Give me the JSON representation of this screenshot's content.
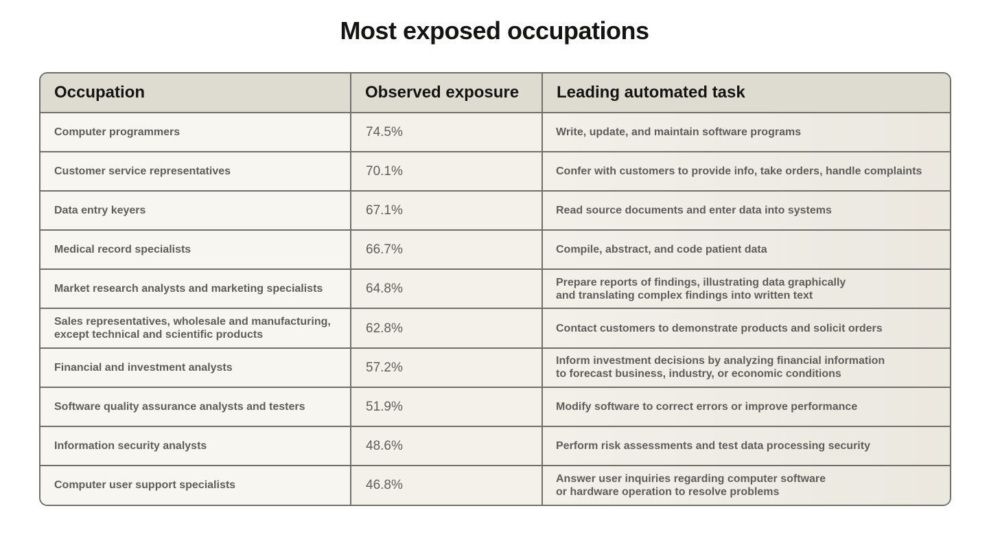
{
  "title": "Most exposed occupations",
  "headers": {
    "occupation": "Occupation",
    "exposure": "Observed exposure",
    "task": "Leading automated task"
  },
  "rows": [
    {
      "occupation": "Computer programmers",
      "exposure": "74.5%",
      "task": "Write, update, and maintain software programs"
    },
    {
      "occupation": "Customer service representatives",
      "exposure": "70.1%",
      "task": "Confer with customers to provide info, take orders, handle complaints"
    },
    {
      "occupation": "Data entry keyers",
      "exposure": "67.1%",
      "task": "Read source documents and enter data into systems"
    },
    {
      "occupation": "Medical record specialists",
      "exposure": "66.7%",
      "task": "Compile, abstract, and code patient data"
    },
    {
      "occupation": "Market research analysts and marketing specialists",
      "exposure": "64.8%",
      "task": "Prepare reports of findings, illustrating data graphically\nand translating complex findings into written text"
    },
    {
      "occupation": "Sales representatives, wholesale and manufacturing,\nexcept technical and scientific products",
      "exposure": "62.8%",
      "task": "Contact customers to demonstrate products and solicit orders"
    },
    {
      "occupation": "Financial and investment analysts",
      "exposure": "57.2%",
      "task": "Inform investment decisions by analyzing financial information\nto forecast business, industry, or economic conditions"
    },
    {
      "occupation": "Software quality assurance analysts and testers",
      "exposure": "51.9%",
      "task": "Modify software to correct errors or improve performance"
    },
    {
      "occupation": "Information security analysts",
      "exposure": "48.6%",
      "task": "Perform risk assessments and test data processing security"
    },
    {
      "occupation": "Computer user support specialists",
      "exposure": "46.8%",
      "task": "Answer user inquiries regarding computer software\nor hardware operation to resolve problems"
    }
  ],
  "chart_data": {
    "type": "table",
    "title": "Most exposed occupations",
    "columns": [
      "Occupation",
      "Observed exposure",
      "Leading automated task"
    ],
    "data": [
      [
        "Computer programmers",
        74.5,
        "Write, update, and maintain software programs"
      ],
      [
        "Customer service representatives",
        70.1,
        "Confer with customers to provide info, take orders, handle complaints"
      ],
      [
        "Data entry keyers",
        67.1,
        "Read source documents and enter data into systems"
      ],
      [
        "Medical record specialists",
        66.7,
        "Compile, abstract, and code patient data"
      ],
      [
        "Market research analysts and marketing specialists",
        64.8,
        "Prepare reports of findings, illustrating data graphically and translating complex findings into written text"
      ],
      [
        "Sales representatives, wholesale and manufacturing, except technical and scientific products",
        62.8,
        "Contact customers to demonstrate products and solicit orders"
      ],
      [
        "Financial and investment analysts",
        57.2,
        "Inform investment decisions by analyzing financial information to forecast business, industry, or economic conditions"
      ],
      [
        "Software quality assurance analysts and testers",
        51.9,
        "Modify software to correct errors or improve performance"
      ],
      [
        "Information security analysts",
        48.6,
        "Perform risk assessments and test data processing security"
      ],
      [
        "Computer user support specialists",
        46.8,
        "Answer user inquiries regarding computer software or hardware operation to resolve problems"
      ]
    ],
    "unit": "%"
  }
}
